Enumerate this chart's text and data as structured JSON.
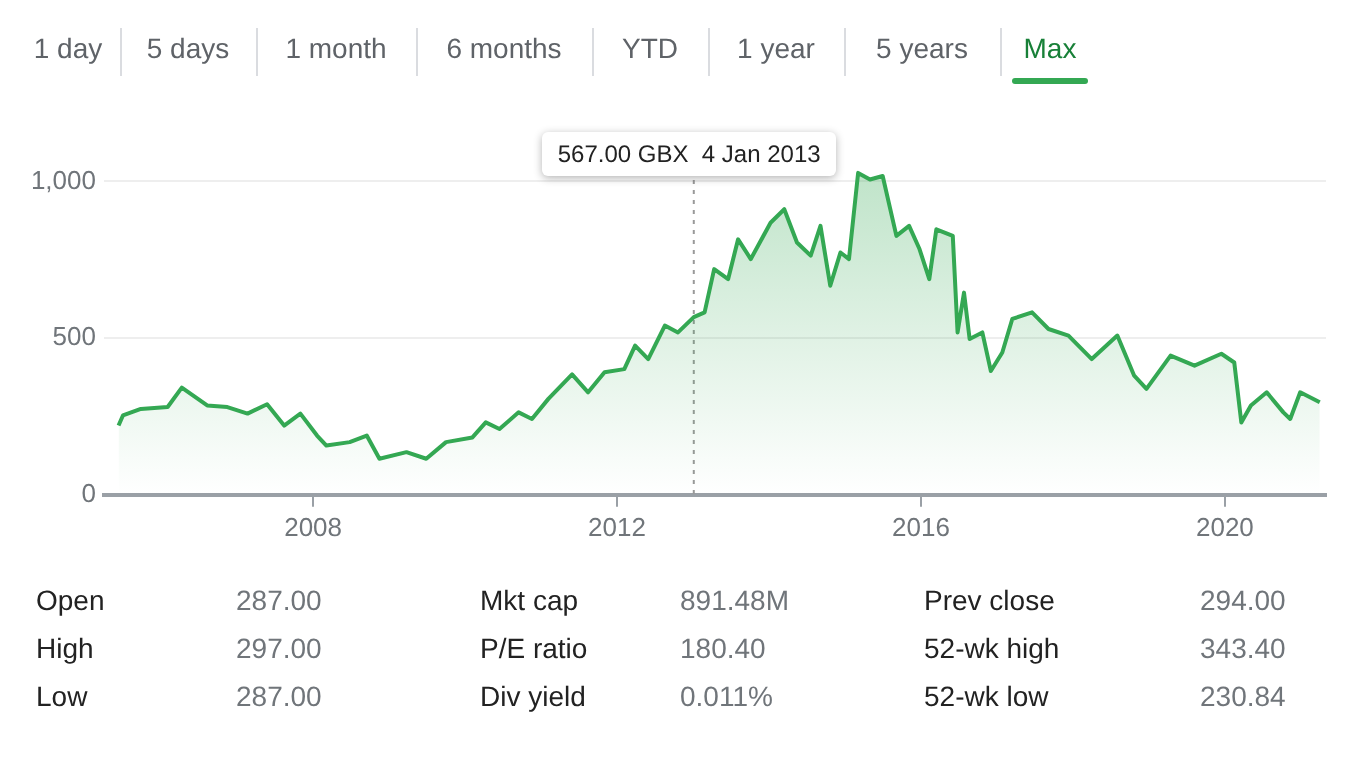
{
  "chart_data": {
    "type": "area",
    "x": [
      "2005-06-10",
      "2005-07-01",
      "2005-09-25",
      "2006-02-01",
      "2006-04-10",
      "2006-08-10",
      "2006-11-15",
      "2007-02-20",
      "2007-05-25",
      "2007-08-15",
      "2007-11-01",
      "2008-01-20",
      "2008-03-05",
      "2008-06-25",
      "2008-09-15",
      "2008-11-15",
      "2009-03-25",
      "2009-06-28",
      "2009-10-01",
      "2010-02-05",
      "2010-04-10",
      "2010-06-15",
      "2010-09-15",
      "2010-11-18",
      "2011-02-05",
      "2011-05-30",
      "2011-08-15",
      "2011-11-02",
      "2012-02-05",
      "2012-03-28",
      "2012-05-30",
      "2012-08-18",
      "2012-10-20",
      "2013-01-04",
      "2013-02-25",
      "2013-04-12",
      "2013-06-18",
      "2013-08-05",
      "2013-10-05",
      "2014-01-08",
      "2014-03-15",
      "2014-05-15",
      "2014-07-20",
      "2014-09-05",
      "2014-10-22",
      "2014-12-10",
      "2015-01-20",
      "2015-03-05",
      "2015-05-01",
      "2015-07-01",
      "2015-09-05",
      "2015-11-05",
      "2015-12-25",
      "2016-02-10",
      "2016-03-15",
      "2016-06-02",
      "2016-06-25",
      "2016-07-26",
      "2016-08-22",
      "2016-10-22",
      "2016-12-02",
      "2017-01-26",
      "2017-03-15",
      "2017-06-18",
      "2017-09-05",
      "2017-12-10",
      "2018-04-01",
      "2018-08-02",
      "2018-10-22",
      "2018-12-20",
      "2019-04-15",
      "2019-08-08",
      "2019-12-15",
      "2020-02-15",
      "2020-03-20",
      "2020-05-05",
      "2020-07-20",
      "2020-10-08",
      "2020-11-10",
      "2020-12-28",
      "2021-04-01"
    ],
    "series": [
      {
        "color": "#34a853",
        "values": [
          221,
          253,
          274,
          280,
          342,
          285,
          280,
          259,
          289,
          221,
          259,
          189,
          157,
          168,
          189,
          115,
          136,
          115,
          168,
          183,
          231,
          210,
          263,
          242,
          306,
          384,
          327,
          391,
          401,
          476,
          433,
          540,
          518,
          567,
          582,
          720,
          688,
          815,
          752,
          868,
          911,
          805,
          763,
          858,
          667,
          773,
          752,
          1027,
          1006,
          1017,
          826,
          858,
          784,
          688,
          847,
          826,
          518,
          645,
          497,
          518,
          395,
          454,
          561,
          582,
          529,
          508,
          433,
          508,
          380,
          338,
          444,
          412,
          450,
          422,
          231,
          285,
          327,
          263,
          242,
          327,
          295
        ]
      }
    ],
    "xlim": [
      "2005-04",
      "2021-05"
    ],
    "xticks": [
      "2008",
      "2012",
      "2016",
      "2020"
    ],
    "ylim": [
      0,
      1100
    ],
    "yticks": [
      0,
      500,
      {
        "value": 1000,
        "label": "1,000"
      }
    ],
    "grid": "y",
    "legend": false,
    "ref_lines": [
      {
        "axis": "x",
        "value": "2013-01-04",
        "color": "#999999",
        "line_style": "dotted"
      }
    ],
    "annotations": [
      "567.00 GBX  4 Jan 2013",
      "1 day",
      "5 days",
      "1 month",
      "6 months",
      "YTD",
      "1 year",
      "5 years",
      "Max",
      "Open",
      "287.00",
      "Mkt cap",
      "891.48M",
      "Prev close",
      "294.00",
      "High",
      "297.00",
      "P/E ratio",
      "180.40",
      "52-wk high",
      "343.40",
      "Low",
      "287.00",
      "Div yield",
      "0.011%",
      "52-wk low",
      "230.84"
    ]
  }
}
